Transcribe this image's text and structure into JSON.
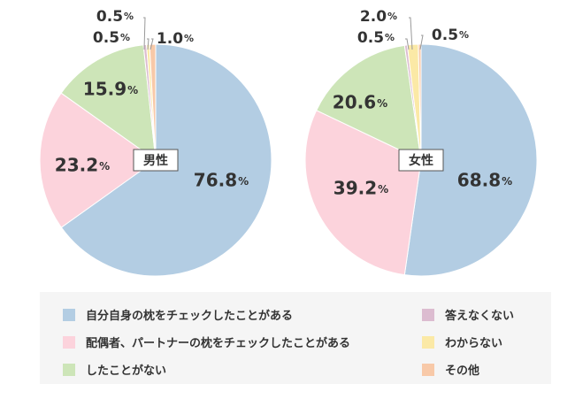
{
  "chart_data": [
    {
      "type": "pie",
      "center_label": "男性",
      "unit": "%",
      "slices": [
        {
          "key": "self",
          "value": 76.8,
          "label": "76.8"
        },
        {
          "key": "partner",
          "value": 23.2,
          "label": "23.2"
        },
        {
          "key": "never",
          "value": 15.9,
          "label": "15.9"
        },
        {
          "key": "no_answer",
          "value": 0.5,
          "label": "0.5"
        },
        {
          "key": "unknown",
          "value": 0.5,
          "label": "0.5"
        },
        {
          "key": "other",
          "value": 1.0,
          "label": "1.0"
        }
      ]
    },
    {
      "type": "pie",
      "center_label": "女性",
      "unit": "%",
      "slices": [
        {
          "key": "self",
          "value": 68.8,
          "label": "68.8"
        },
        {
          "key": "partner",
          "value": 39.2,
          "label": "39.2"
        },
        {
          "key": "never",
          "value": 20.6,
          "label": "20.6"
        },
        {
          "key": "no_answer",
          "value": 0.5,
          "label": "0.5"
        },
        {
          "key": "unknown",
          "value": 2.0,
          "label": "2.0"
        },
        {
          "key": "other",
          "value": 0.5,
          "label": "0.5"
        }
      ]
    }
  ],
  "legend": [
    {
      "key": "self",
      "label": "自分自身の枕をチェックしたことがある",
      "color": "#b3cde3"
    },
    {
      "key": "partner",
      "label": "配偶者、パートナーの枕をチェックしたことがある",
      "color": "#fcd3dc"
    },
    {
      "key": "never",
      "label": "したことがない",
      "color": "#cde5b8"
    },
    {
      "key": "no_answer",
      "label": "答えなくない",
      "color": "#dcbcd0"
    },
    {
      "key": "unknown",
      "label": "わからない",
      "color": "#fbe9a6"
    },
    {
      "key": "other",
      "label": "その他",
      "color": "#f8c9a8"
    }
  ]
}
